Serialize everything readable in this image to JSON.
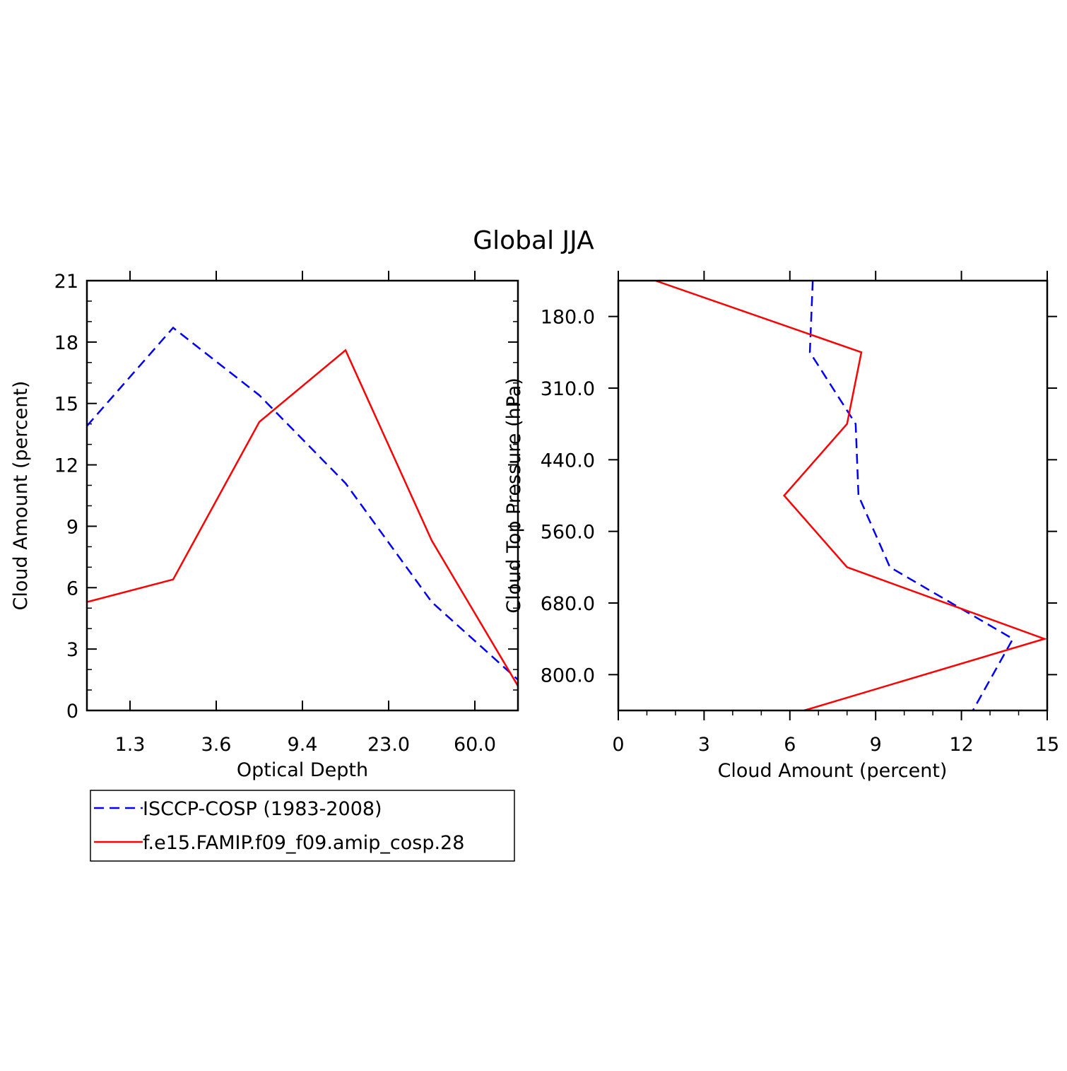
{
  "figure": {
    "title": "Global JJA"
  },
  "legend": {
    "entries": [
      {
        "name": "ISCCP-COSP (1983-2008)",
        "color": "#0000ff",
        "style": "dashed"
      },
      {
        "name": "f.e15.FAMIP.f09_f09.amip_cosp.28",
        "color": "#ff0000",
        "style": "solid"
      }
    ],
    "placement": "below-left"
  },
  "chart_data": [
    {
      "type": "line",
      "xlabel": "Optical Depth",
      "ylabel": "Cloud Amount (percent)",
      "x_bins": 5,
      "x": [
        0,
        1,
        2,
        3,
        4,
        5
      ],
      "x_ticks": [
        {
          "pos": 0.5,
          "label": "1.3"
        },
        {
          "pos": 1.5,
          "label": "3.6"
        },
        {
          "pos": 2.5,
          "label": "9.4"
        },
        {
          "pos": 3.5,
          "label": "23.0"
        },
        {
          "pos": 4.5,
          "label": "60.0"
        }
      ],
      "ylim": [
        0,
        21
      ],
      "y_ticks": [
        0,
        3,
        6,
        9,
        12,
        15,
        18,
        21
      ],
      "series": [
        {
          "name": "ISCCP-COSP (1983-2008)",
          "color": "#0000ff",
          "style": "dashed",
          "values": [
            13.9,
            18.7,
            15.4,
            11.1,
            5.3,
            1.5
          ]
        },
        {
          "name": "f.e15.FAMIP.f09_f09.amip_cosp.28",
          "color": "#ff0000",
          "style": "solid",
          "values": [
            5.3,
            6.4,
            14.1,
            17.6,
            8.3,
            1.2
          ]
        }
      ]
    },
    {
      "type": "line",
      "xlabel": "Cloud Amount (percent)",
      "ylabel": "Cloud Top Pressure (hPa)",
      "xlim": [
        0,
        15
      ],
      "x_ticks": [
        0,
        3,
        6,
        9,
        12,
        15
      ],
      "y_bins": 6,
      "y": [
        0,
        1,
        2,
        3,
        4,
        5,
        6
      ],
      "y_ticks": [
        {
          "pos": 0.5,
          "label": "180.0"
        },
        {
          "pos": 1.5,
          "label": "310.0"
        },
        {
          "pos": 2.5,
          "label": "440.0"
        },
        {
          "pos": 3.5,
          "label": "560.0"
        },
        {
          "pos": 4.5,
          "label": "680.0"
        },
        {
          "pos": 5.5,
          "label": "800.0"
        }
      ],
      "series": [
        {
          "name": "ISCCP-COSP (1983-2008)",
          "color": "#0000ff",
          "style": "dashed",
          "values": [
            6.8,
            6.7,
            8.3,
            8.4,
            9.5,
            13.8,
            12.4
          ]
        },
        {
          "name": "f.e15.FAMIP.f09_f09.amip_cosp.28",
          "color": "#ff0000",
          "style": "solid",
          "values": [
            1.3,
            8.5,
            8.0,
            5.8,
            8.0,
            14.9,
            6.5
          ]
        }
      ]
    }
  ]
}
